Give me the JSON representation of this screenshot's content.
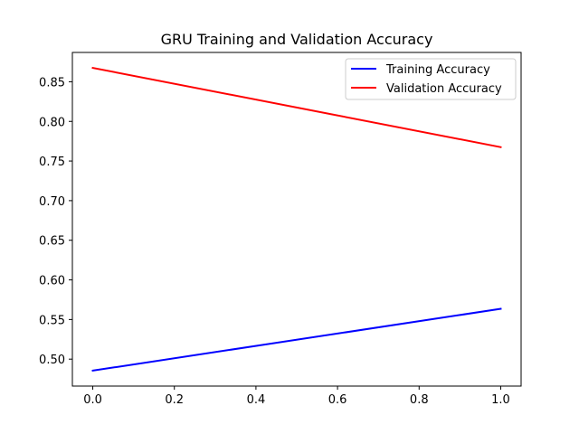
{
  "chart_data": {
    "type": "line",
    "title": "GRU Training and Validation Accuracy",
    "xlabel": "",
    "ylabel": "",
    "x": [
      0.0,
      1.0
    ],
    "series": [
      {
        "name": "Training Accuracy",
        "color": "#0000ff",
        "values": [
          0.4855,
          0.5635
        ]
      },
      {
        "name": "Validation Accuracy",
        "color": "#ff0000",
        "values": [
          0.8675,
          0.7675
        ]
      }
    ],
    "xlim": [
      -0.05,
      1.05
    ],
    "ylim": [
      0.466,
      0.887
    ],
    "xticks": [
      0.0,
      0.2,
      0.4,
      0.6,
      0.8,
      1.0
    ],
    "xtick_labels": [
      "0.0",
      "0.2",
      "0.4",
      "0.6",
      "0.8",
      "1.0"
    ],
    "yticks": [
      0.5,
      0.55,
      0.6,
      0.65,
      0.7,
      0.75,
      0.8,
      0.85
    ],
    "ytick_labels": [
      "0.50",
      "0.55",
      "0.60",
      "0.65",
      "0.70",
      "0.75",
      "0.80",
      "0.85"
    ],
    "grid": false,
    "legend_position": "upper right"
  }
}
